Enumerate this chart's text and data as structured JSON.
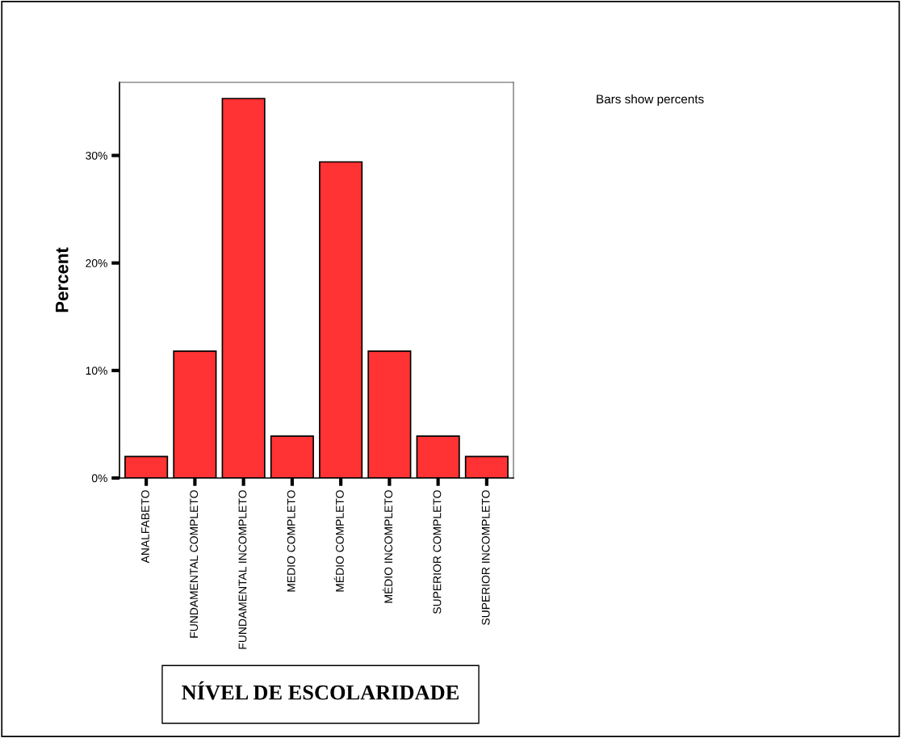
{
  "chart_data": {
    "type": "bar",
    "xlabel": "NÍVEL DE ESCOLARIDADE",
    "ylabel": "Percent",
    "categories": [
      "ANALFABETO",
      "FUNDAMENTAL COMPLETO",
      "FUNDAMENTAL INCOMPLETO",
      "MEDIO COMPLETO",
      "MÉDIO COMPLETO",
      "MÉDIO INCOMPLETO",
      "SUPERIOR COMPLETO",
      "SUPERIOR INCOMPLETO"
    ],
    "values": [
      2.0,
      11.8,
      35.3,
      3.9,
      29.4,
      11.8,
      3.9,
      2.0
    ],
    "color": "#ff3333",
    "ylim": [
      0,
      36.8
    ],
    "yticks": [
      {
        "value": 0,
        "label": "0%"
      },
      {
        "value": 10,
        "label": "10%"
      },
      {
        "value": 20,
        "label": "20%"
      },
      {
        "value": 30,
        "label": "30%"
      }
    ],
    "annotations": [
      "Bars show percents"
    ],
    "grid": false,
    "legend": false
  }
}
